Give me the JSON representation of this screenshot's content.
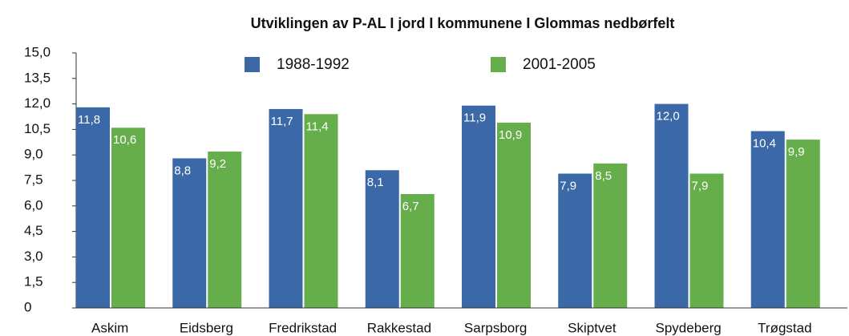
{
  "chart_data": {
    "type": "bar",
    "title": "Utviklingen av P-AL I jord I kommunene I Glommas nedbørfelt",
    "categories": [
      "Askim",
      "Eidsberg",
      "Fredrikstad",
      "Rakkestad",
      "Sarpsborg",
      "Skiptvet",
      "Spydeberg",
      "Trøgstad"
    ],
    "series": [
      {
        "name": "1988-1992",
        "color": "#3b68a6",
        "values": [
          11.8,
          8.8,
          11.7,
          8.1,
          11.9,
          7.9,
          12.0,
          10.4
        ],
        "value_labels": [
          "11,8",
          "8,8",
          "11,7",
          "8,1",
          "11,9",
          "7,9",
          "12,0",
          "10,4"
        ]
      },
      {
        "name": "2001-2005",
        "color": "#66ad4c",
        "values": [
          10.6,
          9.2,
          11.4,
          6.7,
          10.9,
          8.5,
          7.9,
          9.9
        ],
        "value_labels": [
          "10,6",
          "9,2",
          "11,4",
          "6,7",
          "10,9",
          "8,5",
          "7,9",
          "9,9"
        ]
      }
    ],
    "ylim": [
      0,
      15
    ],
    "yticks": [
      0,
      {
        "value": 1.5,
        "label": "1,5"
      },
      {
        "value": 3,
        "label": "3,0"
      },
      {
        "value": 4.5,
        "label": "4,5"
      },
      {
        "value": 6,
        "label": "6,0"
      },
      {
        "value": 7.5,
        "label": "7,5"
      },
      {
        "value": 9,
        "label": "9,0"
      },
      {
        "value": 10.5,
        "label": "10,5"
      },
      {
        "value": 12,
        "label": "12,0"
      },
      {
        "value": 13.5,
        "label": "13,5"
      },
      {
        "value": 15,
        "label": "15,0"
      }
    ],
    "legend": "top"
  }
}
